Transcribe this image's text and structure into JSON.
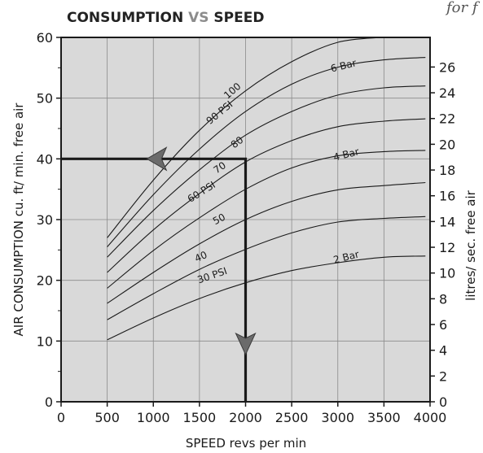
{
  "header": {
    "title_part1": "CONSUMPTION ",
    "title_part2": "VS",
    "title_part3": " SPEED",
    "corner_text": "for f"
  },
  "chart_data": {
    "type": "line",
    "title": "CONSUMPTION VS SPEED",
    "xlabel": "SPEED revs per min",
    "ylabel": "AIR CONSUMPTION cu. ft/ min. free air",
    "y2label": "litres/ sec. free air",
    "xlim": [
      0,
      4000
    ],
    "ylim": [
      0,
      60
    ],
    "y2lim": [
      0,
      28.3
    ],
    "grid": true,
    "x_ticks": [
      0,
      500,
      1000,
      1500,
      2000,
      2500,
      3000,
      3500,
      4000
    ],
    "x_tick_labels": [
      "0",
      "500",
      "1000",
      "1500",
      "2000",
      "2500",
      "3000",
      "3500",
      "4000"
    ],
    "y_ticks": [
      0,
      10,
      20,
      30,
      40,
      50,
      60
    ],
    "y_tick_labels": [
      "0",
      "10",
      "20",
      "30",
      "40",
      "50",
      "60"
    ],
    "y2_ticks": [
      0,
      2,
      4,
      6,
      8,
      10,
      12,
      14,
      16,
      18,
      20,
      22,
      24,
      26
    ],
    "y2_tick_labels": [
      "0",
      "2",
      "4",
      "6",
      "8",
      "10",
      "12",
      "14",
      "16",
      "18",
      "20",
      "22",
      "24",
      "26"
    ],
    "series": [
      {
        "name": "30 PSI",
        "label_at": [
          1650,
          20.3
        ],
        "points": [
          [
            500,
            10.2
          ],
          [
            1000,
            13.8
          ],
          [
            1500,
            17.0
          ],
          [
            2000,
            19.6
          ],
          [
            2500,
            21.6
          ],
          [
            3000,
            22.9
          ],
          [
            3500,
            23.8
          ],
          [
            3950,
            24.0
          ]
        ]
      },
      {
        "name": "40",
        "label_at": [
          1530,
          23.4
        ],
        "points": [
          [
            500,
            13.5
          ],
          [
            1000,
            17.8
          ],
          [
            1500,
            21.8
          ],
          [
            2000,
            25.1
          ],
          [
            2500,
            27.8
          ],
          [
            3000,
            29.6
          ],
          [
            3500,
            30.2
          ],
          [
            3950,
            30.5
          ]
        ]
      },
      {
        "name": "50",
        "label_at": [
          1730,
          29.6
        ],
        "points": [
          [
            500,
            16.2
          ],
          [
            1000,
            21.3
          ],
          [
            1500,
            26.0
          ],
          [
            2000,
            30.0
          ],
          [
            2500,
            33.0
          ],
          [
            3000,
            34.9
          ],
          [
            3500,
            35.6
          ],
          [
            3950,
            36.1
          ]
        ]
      },
      {
        "name": "60 PSI",
        "label_at": [
          1540,
          34.1
        ],
        "points": [
          [
            500,
            18.7
          ],
          [
            1000,
            24.9
          ],
          [
            1500,
            30.3
          ],
          [
            2000,
            35.0
          ],
          [
            2500,
            38.5
          ],
          [
            3000,
            40.5
          ],
          [
            3500,
            41.2
          ],
          [
            3950,
            41.4
          ]
        ]
      },
      {
        "name": "70",
        "label_at": [
          1740,
          38.1
        ],
        "points": [
          [
            500,
            21.3
          ],
          [
            1000,
            28.3
          ],
          [
            1500,
            34.3
          ],
          [
            2000,
            39.5
          ],
          [
            2500,
            43.0
          ],
          [
            3000,
            45.3
          ],
          [
            3500,
            46.2
          ],
          [
            3950,
            46.6
          ]
        ]
      },
      {
        "name": "80",
        "label_at": [
          1930,
          42.3
        ],
        "points": [
          [
            500,
            23.8
          ],
          [
            1000,
            31.5
          ],
          [
            1500,
            38.2
          ],
          [
            2000,
            43.9
          ],
          [
            2500,
            47.8
          ],
          [
            3000,
            50.5
          ],
          [
            3500,
            51.7
          ],
          [
            3950,
            52.0
          ]
        ]
      },
      {
        "name": "90 PSI",
        "label_at": [
          1740,
          47.2
        ],
        "points": [
          [
            500,
            25.5
          ],
          [
            1000,
            34.1
          ],
          [
            1500,
            41.6
          ],
          [
            2000,
            47.8
          ],
          [
            2500,
            52.3
          ],
          [
            3000,
            55.1
          ],
          [
            3500,
            56.3
          ],
          [
            3950,
            56.7
          ]
        ]
      },
      {
        "name": "100",
        "label_at": [
          1880,
          50.8
        ],
        "points": [
          [
            500,
            27.0
          ],
          [
            1000,
            36.5
          ],
          [
            1500,
            44.7
          ],
          [
            2000,
            51.2
          ],
          [
            2500,
            56.0
          ],
          [
            3000,
            59.2
          ],
          [
            3470,
            60.0
          ]
        ]
      }
    ],
    "bar_labels": [
      {
        "text": "6 Bar",
        "at": [
          3070,
          54.8
        ]
      },
      {
        "text": "4 Bar",
        "at": [
          3100,
          40.2
        ]
      },
      {
        "text": "2 Bar",
        "at": [
          3100,
          23.3
        ]
      }
    ],
    "annotation_path": [
      [
        2000,
        0
      ],
      [
        2000,
        40
      ],
      [
        0,
        40
      ]
    ],
    "arrows": [
      {
        "direction": "left",
        "at": [
          1000,
          40
        ]
      },
      {
        "direction": "down",
        "at": [
          2000,
          11
        ]
      }
    ],
    "colors": {
      "plot_background": "#d9d9d9",
      "grid": "#8a8a8a",
      "curve": "#1a1a1a",
      "arrow_fill": "#6b6b6b"
    }
  }
}
